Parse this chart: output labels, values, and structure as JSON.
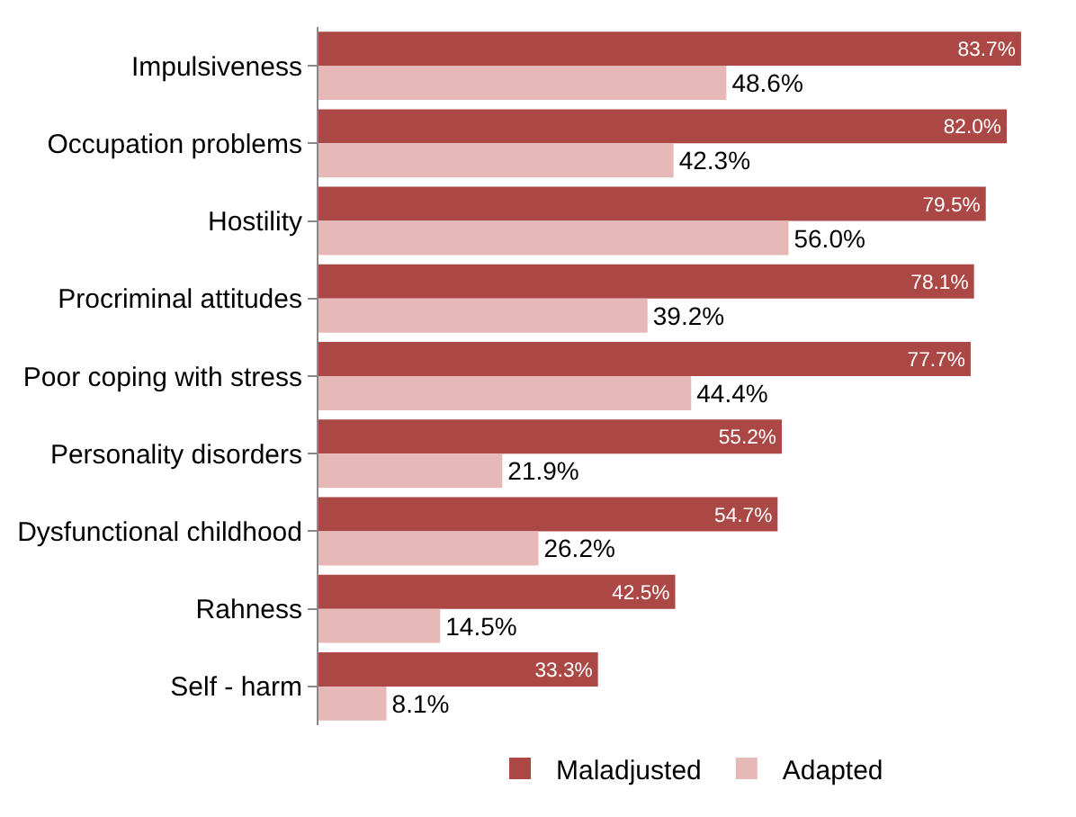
{
  "chart_data": {
    "type": "bar",
    "orientation": "horizontal",
    "categories": [
      "Impulsiveness",
      "Occupation problems",
      "Hostility",
      "Procriminal attitudes",
      "Poor coping with stress",
      "Personality disorders",
      "Dysfunctional childhood",
      "Rahness",
      "Self - harm"
    ],
    "series": [
      {
        "name": "Maladjusted",
        "color": "#ab4745",
        "values": [
          83.7,
          82.0,
          79.5,
          78.1,
          77.7,
          55.2,
          54.7,
          42.5,
          33.3
        ],
        "value_labels": [
          "83.7%",
          "82.0%",
          "79.5%",
          "78.1%",
          "77.7%",
          "55.2%",
          "54.7%",
          "42.5%",
          "33.3%"
        ]
      },
      {
        "name": "Adapted",
        "color": "#e6b9b8",
        "values": [
          48.6,
          42.3,
          56.0,
          39.2,
          44.4,
          21.9,
          26.2,
          14.5,
          8.1
        ],
        "value_labels": [
          "48.6%",
          "42.3%",
          "56.0%",
          "39.2%",
          "44.4%",
          "21.9%",
          "26.2%",
          "14.5%",
          "8.1%"
        ]
      }
    ],
    "grid": false,
    "legend": "bottom",
    "tick_labels": "y"
  }
}
